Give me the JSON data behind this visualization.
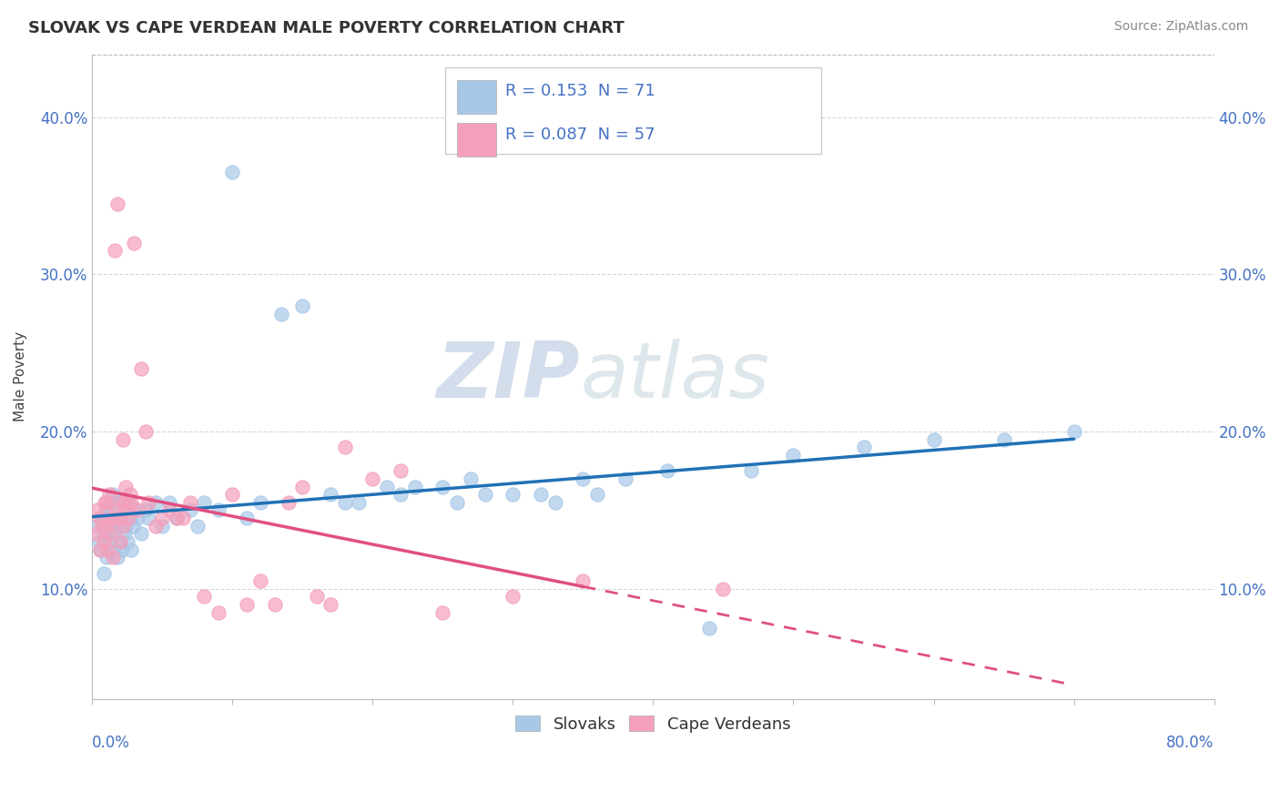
{
  "title": "SLOVAK VS CAPE VERDEAN MALE POVERTY CORRELATION CHART",
  "source_text": "Source: ZipAtlas.com",
  "ylabel": "Male Poverty",
  "xlim": [
    0.0,
    80.0
  ],
  "ylim": [
    3.0,
    44.0
  ],
  "yticks": [
    10.0,
    20.0,
    30.0,
    40.0
  ],
  "xtick_positions": [
    0,
    10,
    20,
    30,
    40,
    50,
    60,
    70,
    80
  ],
  "slovak_color": "#a8c8e8",
  "cape_verdean_color": "#f4a0bc",
  "slovak_line_color": "#2171b5",
  "cape_verdean_line_color": "#e05080",
  "legend_r_slovak": "0.153",
  "legend_n_slovak": "71",
  "legend_r_cape": "0.087",
  "legend_n_cape": "57",
  "legend_label_slovak": "Slovaks",
  "legend_label_cape": "Cape Verdeans",
  "slovak_x": [
    0.3,
    0.5,
    0.6,
    0.7,
    0.8,
    0.9,
    1.0,
    1.0,
    1.1,
    1.2,
    1.3,
    1.4,
    1.5,
    1.5,
    1.6,
    1.7,
    1.8,
    1.9,
    2.0,
    2.0,
    2.1,
    2.2,
    2.3,
    2.4,
    2.5,
    2.6,
    2.7,
    2.8,
    2.9,
    3.0,
    3.2,
    3.5,
    3.8,
    4.0,
    4.5,
    5.0,
    5.5,
    6.0,
    7.0,
    7.5,
    8.0,
    9.0,
    10.0,
    11.0,
    12.0,
    13.5,
    15.0,
    17.0,
    19.0,
    21.0,
    23.0,
    25.0,
    27.0,
    30.0,
    33.0,
    35.0,
    38.0,
    41.0,
    44.0,
    47.0,
    50.0,
    55.0,
    60.0,
    65.0,
    70.0,
    18.0,
    22.0,
    26.0,
    28.0,
    32.0,
    36.0
  ],
  "slovak_y": [
    14.0,
    13.0,
    12.5,
    14.5,
    11.0,
    13.5,
    12.0,
    15.0,
    14.5,
    13.0,
    15.5,
    14.0,
    12.5,
    16.0,
    13.5,
    14.0,
    12.0,
    15.5,
    13.0,
    14.5,
    12.5,
    15.0,
    13.5,
    14.0,
    13.0,
    15.5,
    14.5,
    12.5,
    14.0,
    15.0,
    14.5,
    13.5,
    15.0,
    14.5,
    15.5,
    14.0,
    15.5,
    14.5,
    15.0,
    14.0,
    15.5,
    15.0,
    36.5,
    14.5,
    15.5,
    27.5,
    28.0,
    16.0,
    15.5,
    16.5,
    16.5,
    16.5,
    17.0,
    16.0,
    15.5,
    17.0,
    17.0,
    17.5,
    7.5,
    17.5,
    18.5,
    19.0,
    19.5,
    19.5,
    20.0,
    15.5,
    16.0,
    15.5,
    16.0,
    16.0,
    16.0
  ],
  "cape_x": [
    0.3,
    0.4,
    0.5,
    0.6,
    0.7,
    0.8,
    0.9,
    1.0,
    1.0,
    1.1,
    1.2,
    1.3,
    1.4,
    1.5,
    1.6,
    1.7,
    1.8,
    1.9,
    2.0,
    2.1,
    2.2,
    2.3,
    2.4,
    2.5,
    2.6,
    2.7,
    2.8,
    3.0,
    3.2,
    3.5,
    4.0,
    4.5,
    5.0,
    5.5,
    6.0,
    7.0,
    8.0,
    9.0,
    10.0,
    11.0,
    12.0,
    14.0,
    15.0,
    16.0,
    17.0,
    18.0,
    20.0,
    22.0,
    25.0,
    30.0,
    35.0,
    45.0,
    1.5,
    2.2,
    3.8,
    6.5,
    13.0
  ],
  "cape_y": [
    13.5,
    15.0,
    14.5,
    12.5,
    14.0,
    13.0,
    15.5,
    14.0,
    15.5,
    12.5,
    16.0,
    13.5,
    14.5,
    12.0,
    31.5,
    15.0,
    34.5,
    14.5,
    13.0,
    15.5,
    14.0,
    15.5,
    16.5,
    15.0,
    14.5,
    16.0,
    15.5,
    32.0,
    15.0,
    24.0,
    15.5,
    14.0,
    14.5,
    15.0,
    14.5,
    15.5,
    9.5,
    8.5,
    16.0,
    9.0,
    10.5,
    15.5,
    16.5,
    9.5,
    9.0,
    19.0,
    17.0,
    17.5,
    8.5,
    9.5,
    10.5,
    10.0,
    14.5,
    19.5,
    20.0,
    14.5,
    9.0
  ]
}
